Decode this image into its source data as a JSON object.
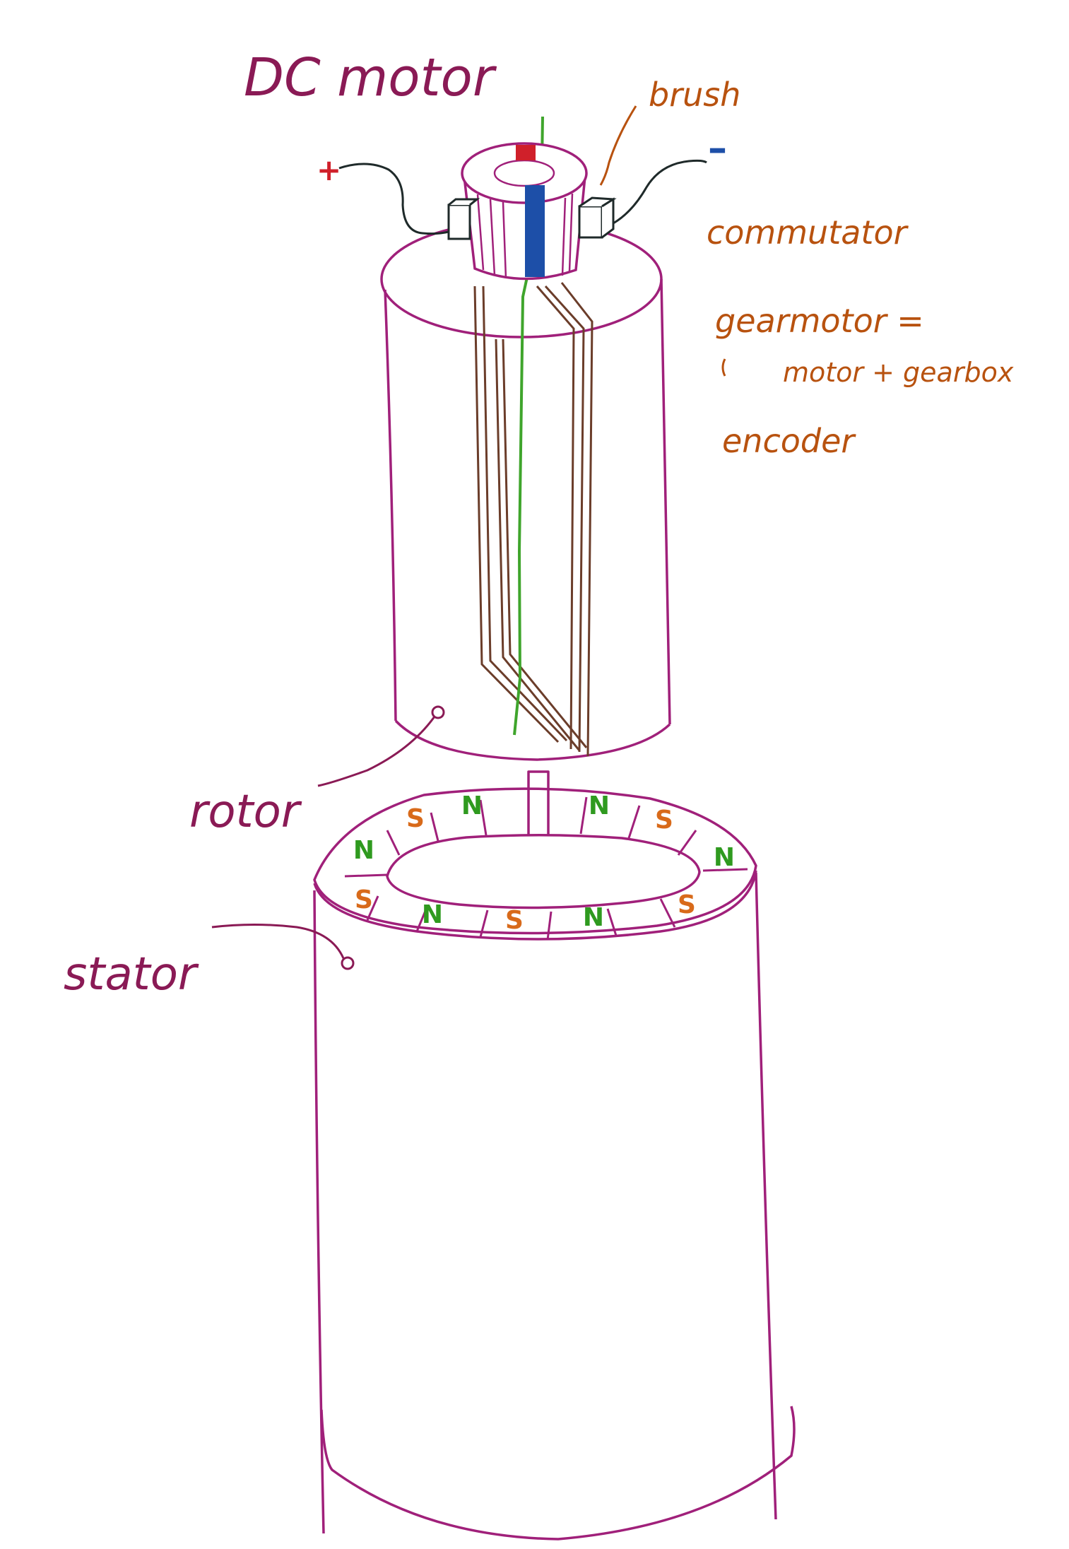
{
  "title": "DC motor",
  "labels": {
    "brush": "brush",
    "commutator": "commutator",
    "gearmotor": "gearmotor =",
    "gearmotor_def": "motor + gearbox",
    "encoder": "encoder",
    "rotor": "rotor",
    "stator": "stator",
    "plus": "+",
    "minus": "–"
  },
  "magnets": {
    "top_row": [
      "S",
      "N",
      "S",
      "N",
      "N",
      "S",
      "N"
    ],
    "bottom_row": [
      "S",
      "N",
      "S",
      "N",
      "S"
    ]
  },
  "colors": {
    "outline": "#a0207a",
    "title": "#8a1a55",
    "notes": "#b8520f",
    "wire": "#1f2a2a",
    "winding": "#6b3d2a",
    "shaft": "#3fa52c",
    "plus": "#d0202a",
    "minus": "#1d4fa8",
    "north": "#2f9a1f",
    "south": "#d86a1a"
  }
}
